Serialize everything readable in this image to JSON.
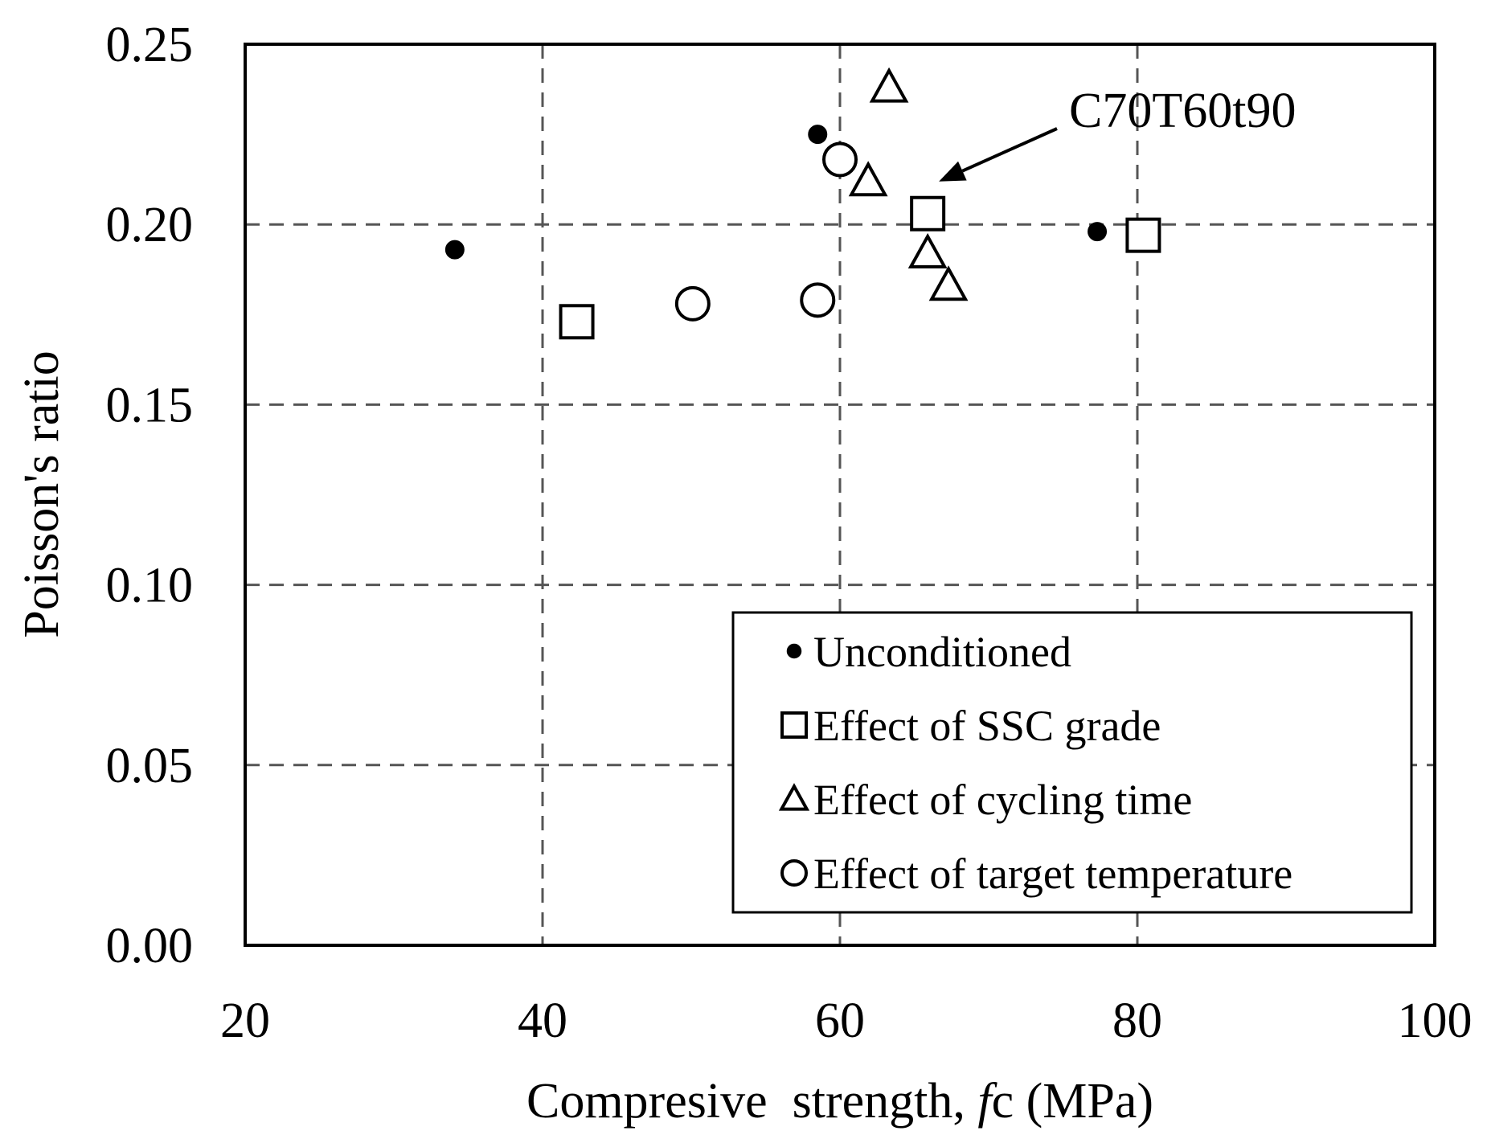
{
  "chart_data": {
    "type": "scatter",
    "xlabel": "Compresive  strength, fc (MPa)",
    "xlabel_parts": {
      "prefix": "Compresive  strength, ",
      "symbol": "f",
      "subscript": "c",
      "unit": " (MPa)"
    },
    "ylabel": "Poisson's ratio",
    "xlim": [
      20,
      100
    ],
    "ylim": [
      0.0,
      0.25
    ],
    "x_ticks": [
      20,
      40,
      60,
      80,
      100
    ],
    "x_tick_labels": [
      "20",
      "40",
      "60",
      "80",
      "100"
    ],
    "y_ticks": [
      0.0,
      0.05,
      0.1,
      0.15,
      0.2,
      0.25
    ],
    "y_tick_labels": [
      "0.00",
      "0.05",
      "0.10",
      "0.15",
      "0.20",
      "0.25"
    ],
    "grid": true,
    "legend_position": "bottom-right",
    "series": [
      {
        "name": "Unconditioned",
        "marker": "filled-circle",
        "points": [
          {
            "x": 34.1,
            "y": 0.193
          },
          {
            "x": 58.5,
            "y": 0.225
          },
          {
            "x": 77.3,
            "y": 0.198
          }
        ]
      },
      {
        "name": "Effect of SSC grade",
        "marker": "open-square",
        "points": [
          {
            "x": 42.3,
            "y": 0.173
          },
          {
            "x": 65.9,
            "y": 0.203
          },
          {
            "x": 80.4,
            "y": 0.197
          }
        ]
      },
      {
        "name": "Effect of cycling time",
        "marker": "open-triangle",
        "points": [
          {
            "x": 63.3,
            "y": 0.238
          },
          {
            "x": 61.9,
            "y": 0.212
          },
          {
            "x": 65.9,
            "y": 0.192
          },
          {
            "x": 67.3,
            "y": 0.183
          }
        ]
      },
      {
        "name": "Effect of target temperature",
        "marker": "open-circle",
        "points": [
          {
            "x": 60.0,
            "y": 0.218
          },
          {
            "x": 50.1,
            "y": 0.178
          },
          {
            "x": 58.5,
            "y": 0.179
          }
        ]
      }
    ],
    "annotations": [
      {
        "text": "C70T60t90",
        "target": {
          "x": 65.9,
          "y": 0.203
        }
      }
    ]
  }
}
